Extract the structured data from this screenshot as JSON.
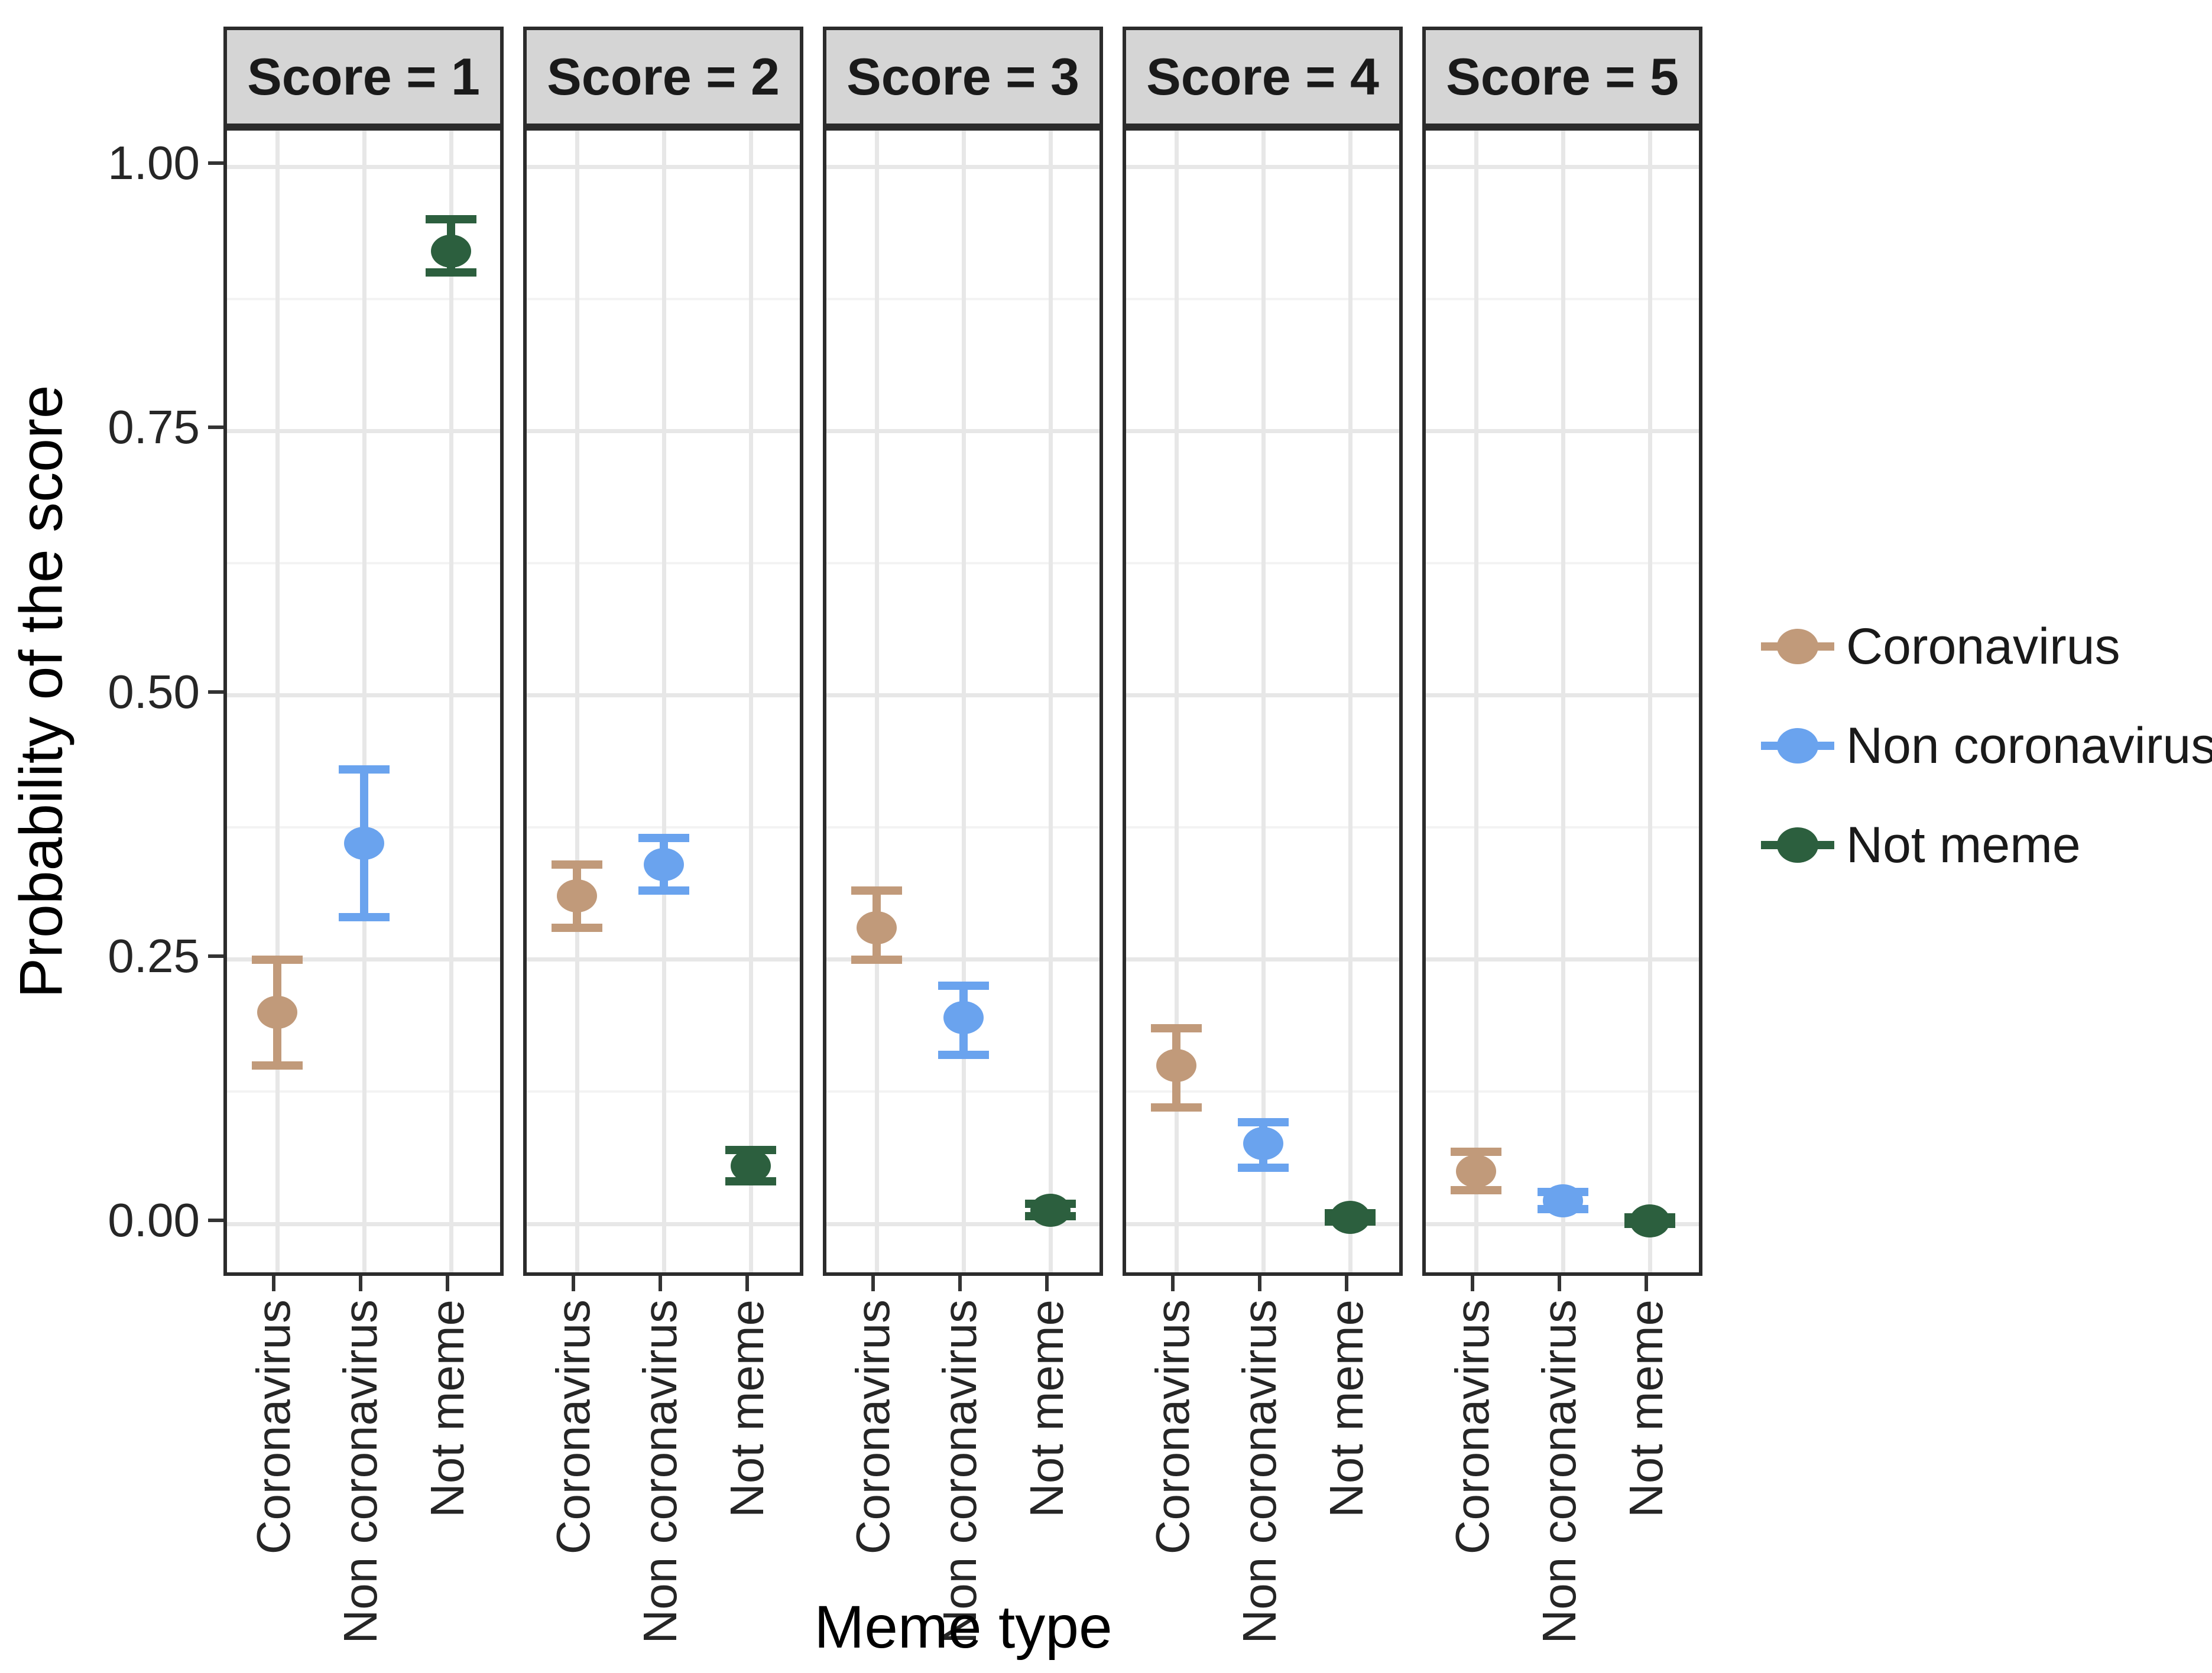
{
  "chart_data": {
    "type": "scatter",
    "subtype": "faceted points with error bars",
    "xlabel": "Meme type",
    "ylabel": "Probability of the score",
    "categories": [
      "Coronavirus",
      "Non coronavirus",
      "Not meme"
    ],
    "yticks": [
      {
        "label": "1.00",
        "value": 1.0
      },
      {
        "label": "0.75",
        "value": 0.75
      },
      {
        "label": "0.50",
        "value": 0.5
      },
      {
        "label": "0.25",
        "value": 0.25
      },
      {
        "label": "0.00",
        "value": 0.0
      }
    ],
    "yminor": [
      0.875,
      0.625,
      0.375,
      0.125
    ],
    "ylim": [
      0,
      1
    ],
    "grid": {
      "major_color": "#E7E7E7",
      "minor_color": "#F3F3F3"
    },
    "panel": {
      "header_bg": "#D5D5D5",
      "border_color": "#2B2B2B"
    },
    "series_colors": {
      "Coronavirus": "#C19A7A",
      "Non coronavirus": "#6AA3EE",
      "Not meme": "#2C5F3E"
    },
    "facets": [
      {
        "label": "Score = 1",
        "points": [
          {
            "category": "Coronavirus",
            "series": "Coronavirus",
            "value": 0.2,
            "lo": 0.15,
            "hi": 0.25
          },
          {
            "category": "Non coronavirus",
            "series": "Non coronavirus",
            "value": 0.36,
            "lo": 0.29,
            "hi": 0.43
          },
          {
            "category": "Not meme",
            "series": "Not meme",
            "value": 0.92,
            "lo": 0.9,
            "hi": 0.95
          }
        ]
      },
      {
        "label": "Score = 2",
        "points": [
          {
            "category": "Coronavirus",
            "series": "Coronavirus",
            "value": 0.31,
            "lo": 0.28,
            "hi": 0.34
          },
          {
            "category": "Non coronavirus",
            "series": "Non coronavirus",
            "value": 0.34,
            "lo": 0.315,
            "hi": 0.365
          },
          {
            "category": "Not meme",
            "series": "Not meme",
            "value": 0.055,
            "lo": 0.04,
            "hi": 0.07
          }
        ]
      },
      {
        "label": "Score = 3",
        "points": [
          {
            "category": "Coronavirus",
            "series": "Coronavirus",
            "value": 0.28,
            "lo": 0.25,
            "hi": 0.315
          },
          {
            "category": "Non coronavirus",
            "series": "Non coronavirus",
            "value": 0.195,
            "lo": 0.16,
            "hi": 0.225
          },
          {
            "category": "Not meme",
            "series": "Not meme",
            "value": 0.013,
            "lo": 0.007,
            "hi": 0.019
          }
        ]
      },
      {
        "label": "Score = 4",
        "points": [
          {
            "category": "Coronavirus",
            "series": "Coronavirus",
            "value": 0.15,
            "lo": 0.11,
            "hi": 0.185
          },
          {
            "category": "Non coronavirus",
            "series": "Non coronavirus",
            "value": 0.076,
            "lo": 0.053,
            "hi": 0.096
          },
          {
            "category": "Not meme",
            "series": "Not meme",
            "value": 0.006,
            "lo": 0.002,
            "hi": 0.01
          }
        ]
      },
      {
        "label": "Score = 5",
        "points": [
          {
            "category": "Coronavirus",
            "series": "Coronavirus",
            "value": 0.05,
            "lo": 0.032,
            "hi": 0.068
          },
          {
            "category": "Non coronavirus",
            "series": "Non coronavirus",
            "value": 0.022,
            "lo": 0.014,
            "hi": 0.03
          },
          {
            "category": "Not meme",
            "series": "Not meme",
            "value": 0.003,
            "lo": 0.0,
            "hi": 0.006
          }
        ]
      }
    ],
    "legend": {
      "position": "right",
      "items": [
        {
          "label": "Coronavirus",
          "color": "#C19A7A"
        },
        {
          "label": "Non coronavirus",
          "color": "#6AA3EE"
        },
        {
          "label": "Not meme",
          "color": "#2C5F3E"
        }
      ]
    }
  }
}
